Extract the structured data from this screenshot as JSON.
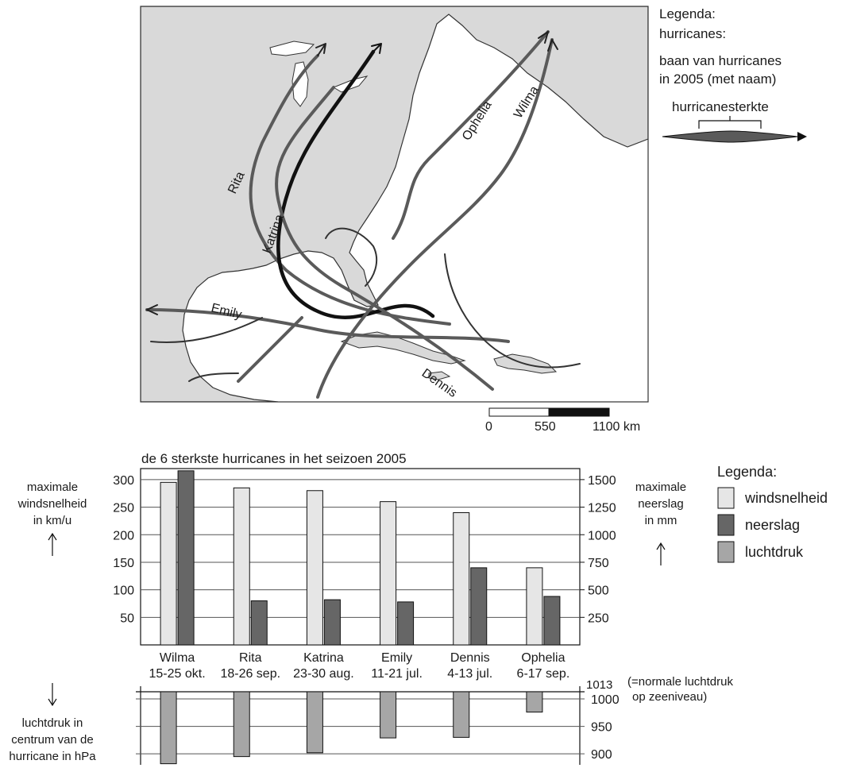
{
  "map": {
    "legend": {
      "title": "Legenda:",
      "subtitle": "hurricanes:",
      "desc_line1": "baan van hurricanes",
      "desc_line2": "in 2005 (met naam)",
      "strength_label": "hurricanesterkte"
    },
    "track_labels": [
      "Rita",
      "Katrina",
      "Emily",
      "Dennis",
      "Ophelia",
      "Wilma"
    ],
    "scale": {
      "ticks": [
        "0",
        "550",
        "1100 km"
      ]
    },
    "colors": {
      "land": "#d9d9d9",
      "track": "#5a5a5a",
      "track_dark": "#111111",
      "border": "#333333"
    }
  },
  "chart_data": {
    "type": "bar",
    "title": "de 6 sterkste hurricanes in het seizoen 2005",
    "categories": [
      "Wilma",
      "Rita",
      "Katrina",
      "Emily",
      "Dennis",
      "Ophelia"
    ],
    "dates": [
      "15-25 okt.",
      "18-26 sep.",
      "23-30 aug.",
      "11-21 jul.",
      "4-13 jul.",
      "6-17 sep."
    ],
    "series": [
      {
        "name": "windsnelheid",
        "axis": "left",
        "color": "#e6e6e6",
        "values": [
          295,
          285,
          280,
          260,
          240,
          140
        ]
      },
      {
        "name": "neerslag",
        "axis": "right",
        "color": "#666666",
        "values": [
          1580,
          400,
          410,
          390,
          700,
          440
        ]
      },
      {
        "name": "luchtdruk",
        "axis": "bottom",
        "color": "#a6a6a6",
        "values": [
          882,
          895,
          902,
          929,
          930,
          976
        ]
      }
    ],
    "left_axis": {
      "label": [
        "maximale",
        "windsnelheid",
        "in km/u"
      ],
      "ticks": [
        50,
        100,
        150,
        200,
        250,
        300
      ],
      "ylim": [
        0,
        320
      ]
    },
    "right_axis": {
      "label": [
        "maximale",
        "neerslag",
        "in mm"
      ],
      "ticks": [
        250,
        500,
        750,
        1000,
        1250,
        1500
      ],
      "ylim": [
        0,
        1600
      ]
    },
    "pressure_axis": {
      "label": [
        "luchtdruk in",
        "centrum van de",
        "hurricane in hPa"
      ],
      "ticks": [
        900,
        950,
        1000
      ],
      "reference_value": 1013,
      "reference_label": "1013",
      "reference_note": [
        "(=normale luchtdruk",
        "op zeeniveau)"
      ],
      "ylim": [
        880,
        1013
      ]
    },
    "legend": {
      "title": "Legenda:",
      "items": [
        "windsnelheid",
        "neerslag",
        "luchtdruk"
      ]
    },
    "grid": true
  }
}
